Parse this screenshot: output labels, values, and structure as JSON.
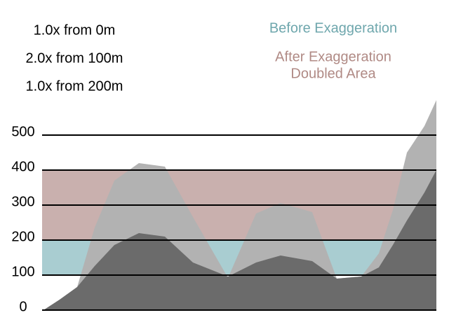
{
  "chart_data": {
    "type": "area",
    "notes": [
      "1.0x from 0m",
      "2.0x from 100m",
      "1.0x from 200m"
    ],
    "legend": [
      {
        "text": "Before Exaggeration",
        "color": "#6fa7ad"
      },
      {
        "text": "After Exaggeration",
        "color": "#b08a85"
      },
      {
        "text": "Doubled Area",
        "color": "#b08a85"
      }
    ],
    "bands": [
      {
        "from": 100,
        "to": 200,
        "color": "#a9cdd1"
      },
      {
        "from": 200,
        "to": 400,
        "color": "#c9b0ae"
      }
    ],
    "x": [
      0,
      23,
      48,
      73,
      101,
      136,
      173,
      213,
      263,
      303,
      338,
      383,
      418,
      453,
      478,
      498,
      518,
      543,
      560
    ],
    "series": [
      {
        "name": "After Exaggeration",
        "color": "#b2b2b2",
        "values": [
          0,
          30,
          66,
          236,
          370,
          420,
          410,
          266,
          92,
          276,
          306,
          280,
          90,
          96,
          162,
          286,
          450,
          526,
          600
        ]
      },
      {
        "name": "Before Exaggeration",
        "color": "#6b6b6b",
        "values": [
          0,
          30,
          66,
          126,
          186,
          220,
          210,
          136,
          96,
          136,
          156,
          140,
          90,
          96,
          122,
          186,
          256,
          336,
          400
        ]
      }
    ],
    "xlim": [
      0,
      560
    ],
    "ylim": [
      0,
      600
    ],
    "yticks": [
      0,
      100,
      200,
      300,
      400,
      500
    ],
    "grid": true
  }
}
